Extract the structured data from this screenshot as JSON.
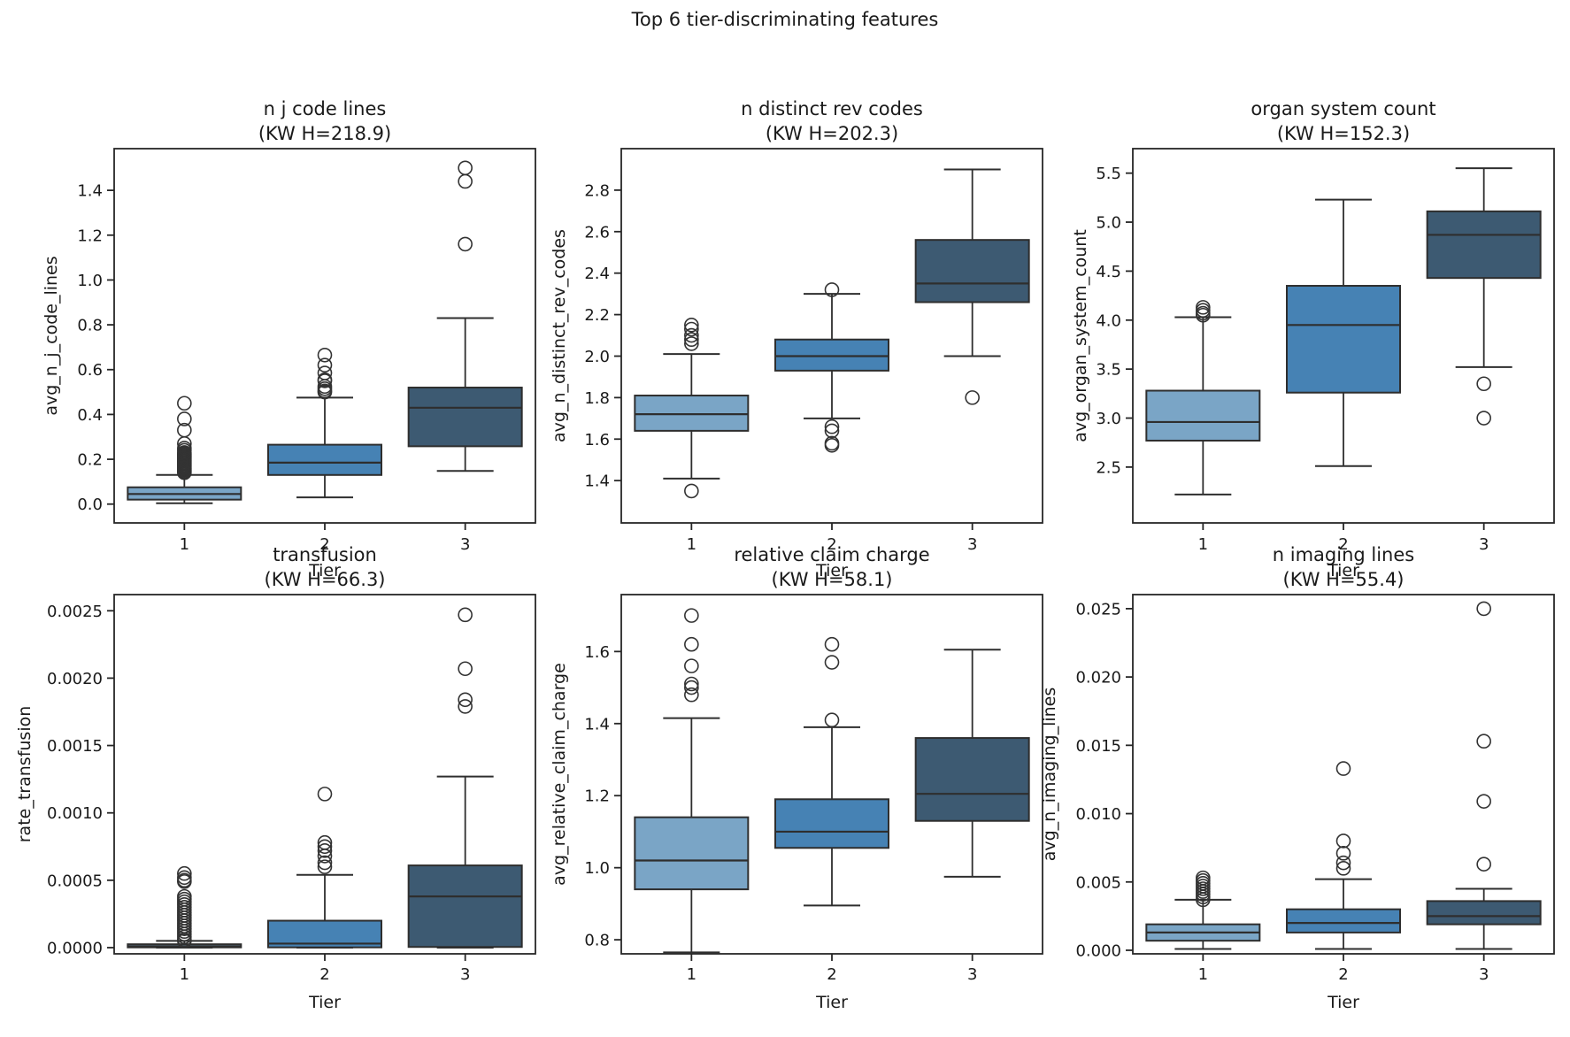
{
  "figure": {
    "title": "Top 6 tier-discriminating features",
    "background": "#ffffff"
  },
  "colors": {
    "tier_fills": [
      "#7AA5C6",
      "#4682B4",
      "#3D5A72"
    ],
    "box_edge": "#2e2e2e",
    "axis": "#262626",
    "text": "#1a1a1a"
  },
  "x_axis": {
    "label": "Tier",
    "categories": [
      "1",
      "2",
      "3"
    ],
    "xlim": [
      0.5,
      3.5
    ]
  },
  "chart_data": [
    {
      "type": "box",
      "title": "n j code lines",
      "subtitle": "(KW H=218.9)",
      "kw_h": 218.9,
      "ylabel": "avg_n_j_code_lines",
      "xlabel": "Tier",
      "ytick_labels": [
        "0.0",
        "0.2",
        "0.4",
        "0.6",
        "0.8",
        "1.0",
        "1.2",
        "1.4"
      ],
      "ylim": [
        -0.084,
        1.586
      ],
      "grid": false,
      "boxes": [
        {
          "tier": "1",
          "whislo": 0.004,
          "q1": 0.02,
          "med": 0.045,
          "q3": 0.075,
          "whishi": 0.13,
          "outliers": [
            0.14,
            0.145,
            0.15,
            0.155,
            0.16,
            0.165,
            0.17,
            0.175,
            0.18,
            0.185,
            0.19,
            0.195,
            0.2,
            0.205,
            0.21,
            0.215,
            0.22,
            0.225,
            0.23,
            0.24,
            0.25,
            0.27,
            0.33,
            0.38,
            0.45
          ]
        },
        {
          "tier": "2",
          "whislo": 0.03,
          "q1": 0.13,
          "med": 0.185,
          "q3": 0.265,
          "whishi": 0.475,
          "outliers": [
            0.5,
            0.505,
            0.515,
            0.525,
            0.55,
            0.555,
            0.585,
            0.62,
            0.665
          ]
        },
        {
          "tier": "3",
          "whislo": 0.148,
          "q1": 0.258,
          "med": 0.43,
          "q3": 0.52,
          "whishi": 0.83,
          "outliers": [
            1.16,
            1.44,
            1.5
          ]
        }
      ]
    },
    {
      "type": "box",
      "title": "n distinct rev codes",
      "subtitle": "(KW H=202.3)",
      "kw_h": 202.3,
      "ylabel": "avg_n_distinct_rev_codes",
      "xlabel": "Tier",
      "ytick_labels": [
        "1.4",
        "1.6",
        "1.8",
        "2.0",
        "2.2",
        "2.4",
        "2.6",
        "2.8"
      ],
      "ylim": [
        1.196,
        3.0
      ],
      "grid": false,
      "boxes": [
        {
          "tier": "1",
          "whislo": 1.41,
          "q1": 1.64,
          "med": 1.72,
          "q3": 1.81,
          "whishi": 2.01,
          "outliers": [
            1.35,
            2.06,
            2.08,
            2.1,
            2.13,
            2.15
          ]
        },
        {
          "tier": "2",
          "whislo": 1.7,
          "q1": 1.93,
          "med": 2.0,
          "q3": 2.08,
          "whishi": 2.3,
          "outliers": [
            1.57,
            1.58,
            1.64,
            1.66,
            2.32
          ]
        },
        {
          "tier": "3",
          "whislo": 2.0,
          "q1": 2.26,
          "med": 2.35,
          "q3": 2.56,
          "whishi": 2.9,
          "outliers": [
            1.8
          ]
        }
      ]
    },
    {
      "type": "box",
      "title": "organ system count",
      "subtitle": "(KW H=152.3)",
      "kw_h": 152.3,
      "ylabel": "avg_organ_system_count",
      "xlabel": "Tier",
      "ytick_labels": [
        "2.5",
        "3.0",
        "3.5",
        "4.0",
        "4.5",
        "5.0",
        "5.5"
      ],
      "ylim": [
        1.93,
        5.75
      ],
      "grid": false,
      "boxes": [
        {
          "tier": "1",
          "whislo": 2.22,
          "q1": 2.77,
          "med": 2.96,
          "q3": 3.28,
          "whishi": 4.03,
          "outliers": [
            4.05,
            4.07,
            4.1,
            4.13
          ]
        },
        {
          "tier": "2",
          "whislo": 2.51,
          "q1": 3.26,
          "med": 3.95,
          "q3": 4.35,
          "whishi": 5.23,
          "outliers": []
        },
        {
          "tier": "3",
          "whislo": 3.52,
          "q1": 4.43,
          "med": 4.87,
          "q3": 5.11,
          "whishi": 5.55,
          "outliers": [
            3.0,
            3.35
          ]
        }
      ]
    },
    {
      "type": "box",
      "title": "transfusion",
      "subtitle": "(KW H=66.3)",
      "kw_h": 66.3,
      "ylabel": "rate_transfusion",
      "xlabel": "Tier",
      "ytick_labels": [
        "0.0000",
        "0.0005",
        "0.0010",
        "0.0015",
        "0.0020",
        "0.0025"
      ],
      "ylim": [
        -4.6e-05,
        0.00262
      ],
      "grid": false,
      "boxes": [
        {
          "tier": "1",
          "whislo": 0.0,
          "q1": 2e-06,
          "med": 1e-05,
          "q3": 2.5e-05,
          "whishi": 5e-05,
          "outliers": [
            5e-05,
            6e-05,
            8e-05,
            0.0001,
            0.00012,
            0.00014,
            0.00016,
            0.00018,
            0.0002,
            0.00022,
            0.00024,
            0.00026,
            0.00028,
            0.0003,
            0.00032,
            0.00034,
            0.00036,
            0.00038,
            0.00049,
            0.0005,
            0.00052,
            0.00055
          ]
        },
        {
          "tier": "2",
          "whislo": 0.0,
          "q1": 2e-06,
          "med": 3e-05,
          "q3": 0.0002,
          "whishi": 0.00054,
          "outliers": [
            0.0006,
            0.00063,
            0.00068,
            0.00072,
            0.00075,
            0.00078,
            0.00114
          ]
        },
        {
          "tier": "3",
          "whislo": 0.0,
          "q1": 5e-06,
          "med": 0.00038,
          "q3": 0.00061,
          "whishi": 0.00127,
          "outliers": [
            0.00179,
            0.00184,
            0.00207,
            0.00247
          ]
        }
      ]
    },
    {
      "type": "box",
      "title": "relative claim charge",
      "subtitle": "(KW H=58.1)",
      "kw_h": 58.1,
      "ylabel": "avg_relative_claim_charge",
      "xlabel": "Tier",
      "ytick_labels": [
        "0.8",
        "1.0",
        "1.2",
        "1.4",
        "1.6"
      ],
      "ylim": [
        0.761,
        1.758
      ],
      "grid": false,
      "boxes": [
        {
          "tier": "1",
          "whislo": 0.765,
          "q1": 0.94,
          "med": 1.02,
          "q3": 1.14,
          "whishi": 1.415,
          "outliers": [
            1.48,
            1.5,
            1.51,
            1.56,
            1.62,
            1.7
          ]
        },
        {
          "tier": "2",
          "whislo": 0.895,
          "q1": 1.055,
          "med": 1.1,
          "q3": 1.19,
          "whishi": 1.39,
          "outliers": [
            1.41,
            1.57,
            1.62
          ]
        },
        {
          "tier": "3",
          "whislo": 0.975,
          "q1": 1.13,
          "med": 1.205,
          "q3": 1.36,
          "whishi": 1.605,
          "outliers": []
        }
      ]
    },
    {
      "type": "box",
      "title": "n imaging lines",
      "subtitle": "(KW H=55.4)",
      "kw_h": 55.4,
      "ylabel": "avg_n_imaging_lines",
      "xlabel": "Tier",
      "ytick_labels": [
        "0.000",
        "0.005",
        "0.010",
        "0.015",
        "0.020",
        "0.025"
      ],
      "ylim": [
        -0.00026,
        0.02603
      ],
      "grid": false,
      "boxes": [
        {
          "tier": "1",
          "whislo": 0.0001,
          "q1": 0.0007,
          "med": 0.0013,
          "q3": 0.0019,
          "whishi": 0.0037,
          "outliers": [
            0.0037,
            0.0039,
            0.0041,
            0.0043,
            0.0045,
            0.0047,
            0.0049,
            0.0051,
            0.0053
          ]
        },
        {
          "tier": "2",
          "whislo": 0.0001,
          "q1": 0.0013,
          "med": 0.002,
          "q3": 0.003,
          "whishi": 0.0052,
          "outliers": [
            0.006,
            0.0064,
            0.0071,
            0.008,
            0.0133
          ]
        },
        {
          "tier": "3",
          "whislo": 0.0001,
          "q1": 0.0019,
          "med": 0.0025,
          "q3": 0.0036,
          "whishi": 0.0045,
          "outliers": [
            0.0063,
            0.0109,
            0.0153,
            0.025
          ]
        }
      ]
    }
  ]
}
